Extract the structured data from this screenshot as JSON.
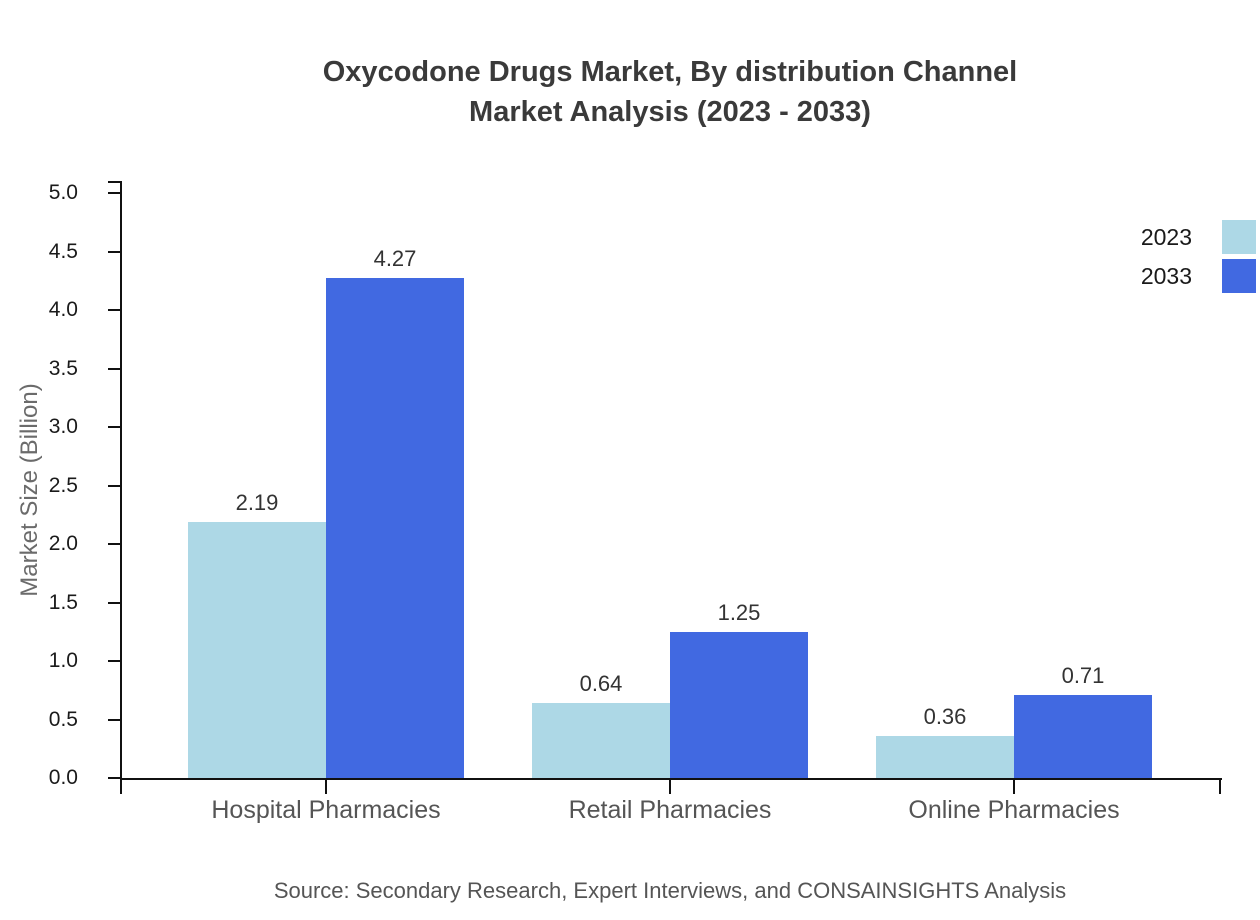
{
  "title": {
    "line1": "Oxycodone Drugs Market, By distribution Channel",
    "line2": "Market Analysis (2023 - 2033)"
  },
  "chart_data": {
    "type": "bar",
    "categories": [
      "Hospital Pharmacies",
      "Retail Pharmacies",
      "Online Pharmacies"
    ],
    "series": [
      {
        "name": "2023",
        "color": "#ADD8E6",
        "values": [
          2.19,
          0.64,
          0.36
        ]
      },
      {
        "name": "2033",
        "color": "#4169E1",
        "values": [
          4.27,
          1.25,
          0.71
        ]
      }
    ],
    "title": "Oxycodone Drugs Market, By distribution Channel Market Analysis (2023 - 2033)",
    "xlabel": "",
    "ylabel": "Market Size (Billion)",
    "ylim": [
      0,
      5
    ],
    "ytick_step": 0.5,
    "ytick_labels": [
      "0.0",
      "0.5",
      "1.0",
      "1.5",
      "2.0",
      "2.5",
      "3.0",
      "3.5",
      "4.0",
      "4.5",
      "5.0"
    ],
    "value_labels": [
      "2.19",
      "4.27",
      "0.64",
      "1.25",
      "0.36",
      "0.71"
    ],
    "grid": false,
    "legend_position": "top-right"
  },
  "source_note": "Source: Secondary Research, Expert Interviews, and CONSAINSIGHTS Analysis",
  "colors": {
    "series_2023": "#ADD8E6",
    "series_2033": "#4169E1",
    "axis": "#111111",
    "title_text": "#3a3a3a",
    "tick_text": "#1a1a1a",
    "category_text": "#555555",
    "value_text": "#333333",
    "ylabel_text": "#6b6b6b",
    "source_text": "#555555",
    "background": "#ffffff"
  }
}
